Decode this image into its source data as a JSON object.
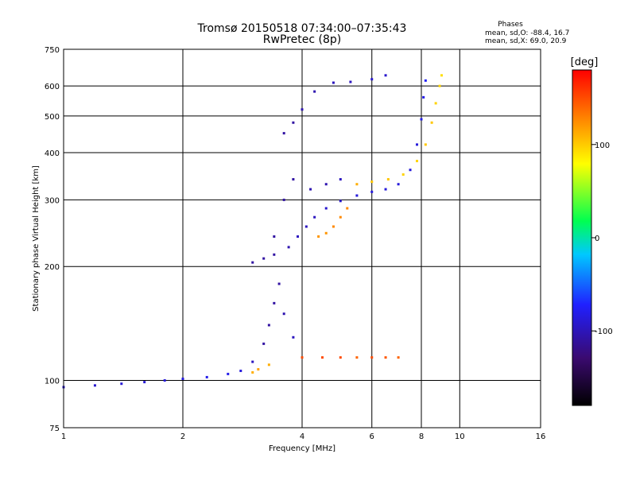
{
  "chart_data": {
    "type": "scatter",
    "title": "Tromsø 20150518 07:34:00–07:35:43",
    "subtitle": "RwPretec (8p)",
    "xlabel": "Frequency [MHz]",
    "ylabel": "Stationary phase Virtual Height [km]",
    "x_scale": "log",
    "y_scale": "log",
    "xlim": [
      1,
      16
    ],
    "ylim": [
      75,
      750
    ],
    "x_ticks": [
      1,
      2,
      4,
      6,
      8,
      10,
      16
    ],
    "x_tick_labels": [
      "1",
      "2",
      "4",
      "6",
      "8",
      "10",
      "16"
    ],
    "y_ticks": [
      75,
      100,
      200,
      300,
      400,
      500,
      600,
      750
    ],
    "y_tick_labels": [
      "75",
      "100",
      "200",
      "300",
      "400",
      "500",
      "600",
      "750"
    ],
    "grid": true,
    "phase_stats": {
      "heading": "Phases",
      "o_line": "mean, sd,O: -88.4, 16.7",
      "x_line": "mean, sd,X:  69.0, 20.9"
    },
    "colorbar": {
      "label": "[deg]",
      "range": [
        -180,
        180
      ],
      "ticks": [
        -100,
        0,
        100
      ],
      "tick_labels": [
        "-100",
        "0",
        "100"
      ],
      "colormap": [
        "#000000",
        "#3a0a6e",
        "#2020ff",
        "#00c8ff",
        "#00ff50",
        "#ffff00",
        "#ff8000",
        "#ff0000"
      ]
    },
    "series": [
      {
        "trace": [
          [
            1.0,
            96,
            -95
          ],
          [
            1.2,
            97,
            -95
          ],
          [
            1.4,
            98,
            -92
          ],
          [
            1.6,
            99,
            -92
          ],
          [
            1.8,
            100,
            -90
          ],
          [
            2.0,
            101,
            -88
          ],
          [
            2.3,
            102,
            -85
          ],
          [
            2.6,
            104,
            -85
          ],
          [
            2.8,
            106,
            -90
          ],
          [
            3.0,
            112,
            -100
          ],
          [
            3.2,
            125,
            -110
          ],
          [
            3.3,
            140,
            -110
          ],
          [
            3.4,
            160,
            -110
          ],
          [
            3.5,
            180,
            -110
          ],
          [
            3.6,
            150,
            -105
          ],
          [
            3.8,
            130,
            -100
          ],
          [
            3.0,
            205,
            -110
          ],
          [
            3.2,
            210,
            -110
          ],
          [
            3.4,
            215,
            -110
          ],
          [
            3.7,
            225,
            -105
          ],
          [
            3.9,
            240,
            -100
          ],
          [
            4.1,
            255,
            -100
          ],
          [
            4.3,
            270,
            -100
          ],
          [
            4.6,
            285,
            -95
          ],
          [
            5.0,
            298,
            -95
          ],
          [
            5.5,
            308,
            -90
          ],
          [
            6.0,
            315,
            -90
          ],
          [
            6.5,
            320,
            -90
          ],
          [
            7.0,
            330,
            -90
          ],
          [
            7.5,
            360,
            -90
          ],
          [
            7.8,
            420,
            -90
          ],
          [
            8.0,
            490,
            -85
          ],
          [
            8.1,
            560,
            -85
          ],
          [
            8.2,
            620,
            -80
          ],
          [
            3.4,
            240,
            -110
          ],
          [
            3.6,
            300,
            -110
          ],
          [
            3.8,
            340,
            -110
          ],
          [
            4.2,
            320,
            -105
          ],
          [
            4.6,
            330,
            -105
          ],
          [
            5.0,
            340,
            -100
          ],
          [
            3.6,
            450,
            -110
          ],
          [
            3.8,
            480,
            -110
          ],
          [
            4.0,
            520,
            -105
          ],
          [
            4.3,
            580,
            -105
          ],
          [
            4.8,
            612,
            -100
          ],
          [
            5.3,
            615,
            -100
          ],
          [
            6.0,
            625,
            -95
          ],
          [
            6.5,
            640,
            -95
          ]
        ]
      },
      {
        "trace": [
          [
            3.0,
            105,
            110
          ],
          [
            3.1,
            107,
            115
          ],
          [
            3.3,
            110,
            110
          ],
          [
            4.4,
            240,
            120
          ],
          [
            4.6,
            245,
            120
          ],
          [
            4.8,
            255,
            125
          ],
          [
            5.0,
            270,
            125
          ],
          [
            5.2,
            285,
            125
          ],
          [
            5.5,
            330,
            110
          ],
          [
            6.0,
            335,
            100
          ],
          [
            6.6,
            340,
            100
          ],
          [
            7.2,
            350,
            95
          ],
          [
            7.8,
            380,
            95
          ],
          [
            8.2,
            420,
            100
          ],
          [
            8.5,
            480,
            100
          ],
          [
            8.7,
            540,
            95
          ],
          [
            8.9,
            600,
            95
          ],
          [
            9.0,
            640,
            90
          ]
        ]
      },
      {
        "trace": [
          [
            4.0,
            115,
            150
          ],
          [
            4.5,
            115,
            150
          ],
          [
            5.0,
            115,
            150
          ],
          [
            5.5,
            115,
            140
          ],
          [
            6.0,
            115,
            150
          ],
          [
            6.5,
            115,
            145
          ],
          [
            7.0,
            115,
            140
          ]
        ]
      }
    ]
  }
}
